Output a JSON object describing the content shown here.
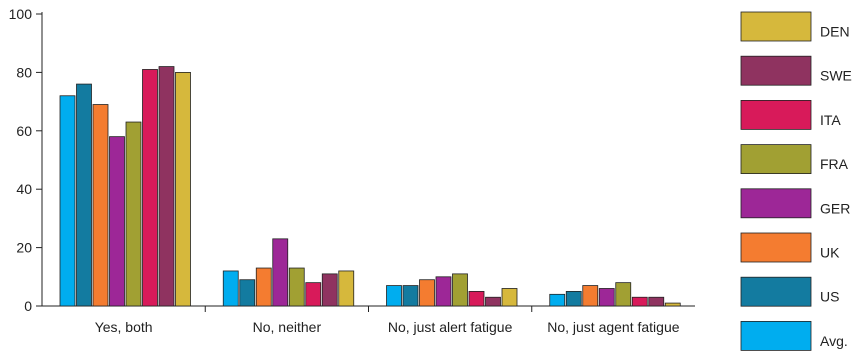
{
  "chart_data": {
    "type": "bar",
    "categories": [
      "Yes, both",
      "No, neither",
      "No, just alert fatigue",
      "No, just agent fatigue"
    ],
    "series": [
      {
        "name": "Avg.",
        "color": "#00adef",
        "values": [
          72,
          12,
          7,
          4
        ]
      },
      {
        "name": "US",
        "color": "#137ba0",
        "values": [
          76,
          9,
          7,
          5
        ]
      },
      {
        "name": "UK",
        "color": "#f47c30",
        "values": [
          69,
          13,
          9,
          7
        ]
      },
      {
        "name": "GER",
        "color": "#9d2797",
        "values": [
          58,
          23,
          10,
          6
        ]
      },
      {
        "name": "FRA",
        "color": "#a1a033",
        "values": [
          63,
          13,
          11,
          8
        ]
      },
      {
        "name": "ITA",
        "color": "#d81a5a",
        "values": [
          81,
          8,
          5,
          3
        ]
      },
      {
        "name": "SWE",
        "color": "#8f3360",
        "values": [
          82,
          11,
          3,
          3
        ]
      },
      {
        "name": "DEN",
        "color": "#d6b83c",
        "values": [
          80,
          12,
          6,
          1
        ]
      }
    ],
    "ylim": [
      0,
      100
    ],
    "yticks": [
      0,
      20,
      40,
      60,
      80,
      100
    ],
    "legend_position": "right",
    "grid": false
  }
}
